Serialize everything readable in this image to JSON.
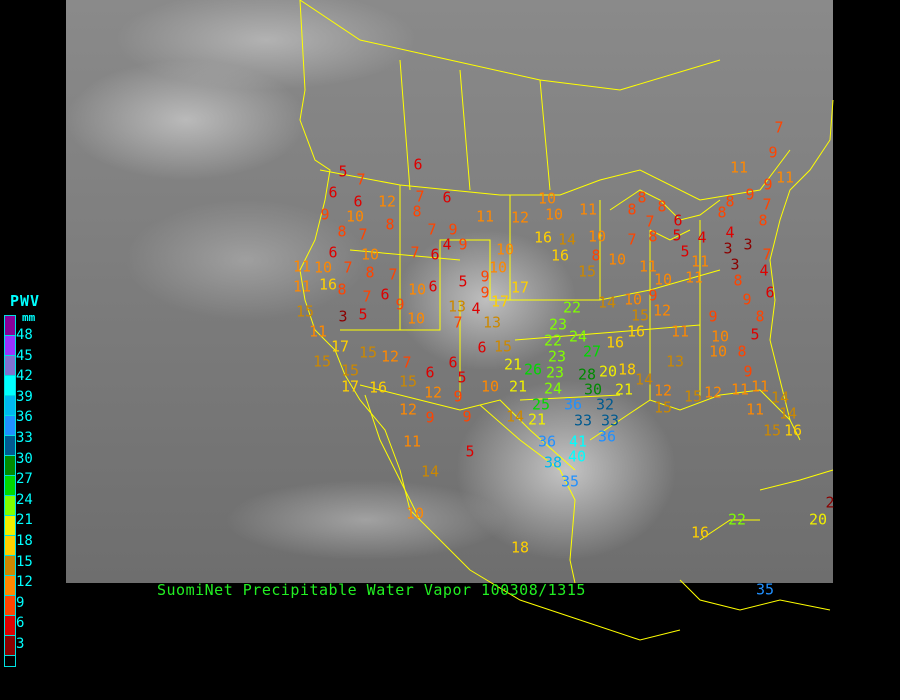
{
  "title": "SuomiNet Precipitable Water Vapor",
  "timestamp": "100308/1315",
  "legend": {
    "title": "PWV",
    "unit": "mm",
    "labels": [
      "48",
      "45",
      "42",
      "39",
      "36",
      "33",
      "30",
      "27",
      "24",
      "21",
      "18",
      "15",
      "12",
      "9",
      "6",
      "3"
    ],
    "colors": [
      "#880099",
      "#9933ff",
      "#8070d0",
      "#00ffff",
      "#00b8f0",
      "#2090ff",
      "#005a90",
      "#008a00",
      "#00d800",
      "#80ff00",
      "#f0f000",
      "#ffd000",
      "#cc8800",
      "#ff8800",
      "#ff4400",
      "#dd0000",
      "#8b0000"
    ]
  },
  "colors": {
    "border_lines": "#ffff00",
    "title": "#22ee22",
    "legend_text": "#00ffff"
  },
  "stations": [
    5,
    7,
    6,
    6,
    6,
    12,
    7,
    6,
    9,
    10,
    8,
    11,
    12,
    8,
    7,
    8,
    7,
    9,
    4,
    6,
    10,
    7,
    6,
    9,
    11,
    10,
    7,
    8,
    7,
    10,
    11,
    16,
    8,
    6,
    10,
    5,
    9,
    9,
    7,
    6,
    4,
    17,
    15,
    3,
    5,
    9,
    10,
    13,
    7,
    13,
    11,
    17,
    15,
    15,
    15,
    12,
    7,
    17,
    16,
    15,
    6,
    12,
    12,
    9,
    6,
    5,
    9,
    10,
    9,
    6,
    15,
    21,
    26,
    21,
    14,
    21,
    10,
    10,
    11,
    8,
    8,
    8,
    9,
    8,
    9,
    8,
    7,
    8,
    7,
    8,
    7,
    6,
    5,
    5,
    4,
    4,
    3,
    3,
    7,
    4,
    3,
    8,
    16,
    14,
    16,
    10,
    8,
    10,
    15,
    11,
    11,
    11,
    10,
    9,
    14,
    10,
    12,
    6,
    9,
    8,
    9,
    10,
    17,
    22,
    23,
    24,
    22,
    27,
    23,
    23,
    24,
    28,
    20,
    18,
    16,
    16,
    15,
    11,
    13,
    10,
    10,
    8,
    5,
    9,
    25,
    30,
    21,
    14,
    12,
    15,
    15,
    12,
    11,
    11,
    14,
    11,
    14,
    15,
    16,
    36,
    32,
    33,
    33,
    36,
    36,
    41,
    38,
    40,
    35,
    11,
    9,
    7,
    11,
    5,
    11,
    14,
    10,
    18,
    22,
    20,
    16,
    35,
    2
  ]
}
